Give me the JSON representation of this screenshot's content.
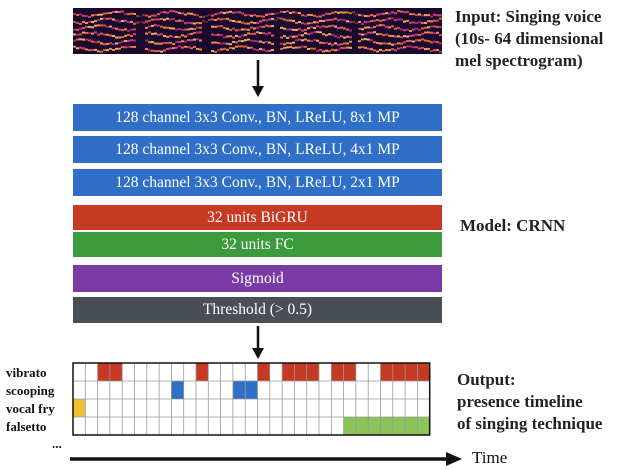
{
  "input_label": [
    "Input: Singing voice",
    "(10s- 64 dimensional",
    "mel spectrogram)"
  ],
  "model_label": "Model: CRNN",
  "output_label": [
    "Output:",
    "presence timeline",
    "of singing technique"
  ],
  "layers": [
    "128 channel 3x3 Conv., BN, LReLU, 8x1 MP",
    "128 channel 3x3 Conv., BN, LReLU, 4x1 MP",
    "128 channel 3x3 Conv., BN, LReLU, 2x1 MP",
    "32 units BiGRU",
    "32 units FC",
    "Sigmoid",
    "Threshold (> 0.5)"
  ],
  "techniques": [
    {
      "name": "vibrato",
      "color": "#c63a23",
      "active": [
        2,
        3,
        10,
        15,
        15,
        17,
        18,
        19,
        21,
        22,
        25,
        26,
        27,
        28
      ]
    },
    {
      "name": "scooping",
      "color": "#2f6fc7",
      "active": [
        8,
        13,
        14
      ]
    },
    {
      "name": "vocal fry",
      "color": "#f2c12e",
      "active": [
        0
      ]
    },
    {
      "name": "falsetto",
      "color": "#8cc45a",
      "active": [
        22,
        23,
        24,
        25,
        26,
        27,
        28
      ]
    }
  ],
  "more_rows": "...",
  "time_label": "Time",
  "grid_columns": 29
}
